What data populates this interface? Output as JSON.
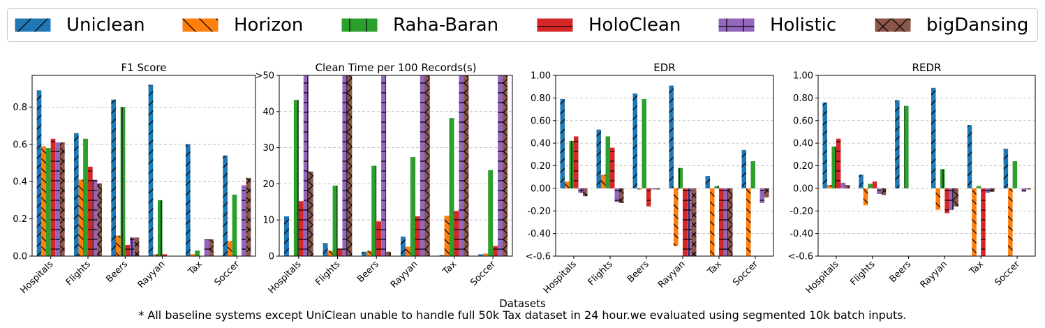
{
  "legend": [
    {
      "name": "Uniclean",
      "color": "#1f77b4",
      "hatch": "/"
    },
    {
      "name": "Horizon",
      "color": "#ff7f0e",
      "hatch": "\\"
    },
    {
      "name": "Raha-Baran",
      "color": "#2ca02c",
      "hatch": "|"
    },
    {
      "name": "HoloClean",
      "color": "#d62728",
      "hatch": "-"
    },
    {
      "name": "Holistic",
      "color": "#9467bd",
      "hatch": "+"
    },
    {
      "name": "bigDansing",
      "color": "#8c564b",
      "hatch": "x"
    }
  ],
  "xlabel": "Datasets",
  "footnote": "* All baseline systems except UniClean unable to handle full 50k Tax dataset in 24 hour.we evaluated using segmented 10k batch inputs.",
  "chart_data": [
    {
      "type": "bar",
      "title": "F1 Score",
      "categories": [
        "Hospitals",
        "Flights",
        "Beers",
        "Rayyan",
        "Tax",
        "Soccer"
      ],
      "ylim": [
        0,
        0.97
      ],
      "yticks": [
        0,
        0.2,
        0.4,
        0.6,
        0.8
      ],
      "ytick_labels": [
        "0.0",
        "0.2",
        "0.4",
        "0.6",
        "0.8"
      ],
      "grid": true,
      "series": [
        {
          "name": "Uniclean",
          "values": [
            0.89,
            0.66,
            0.84,
            0.92,
            0.6,
            0.54
          ]
        },
        {
          "name": "Horizon",
          "values": [
            0.59,
            0.41,
            0.11,
            0.01,
            0.01,
            0.08
          ]
        },
        {
          "name": "Raha-Baran",
          "values": [
            0.58,
            0.63,
            0.8,
            0.3,
            0.03,
            0.33
          ]
        },
        {
          "name": "HoloClean",
          "values": [
            0.63,
            0.48,
            0.06,
            0.01,
            0.0,
            0.0
          ]
        },
        {
          "name": "Holistic",
          "values": [
            0.61,
            0.41,
            0.1,
            0.0,
            0.09,
            0.38
          ]
        },
        {
          "name": "bigDansing",
          "values": [
            0.61,
            0.39,
            0.1,
            0.0,
            0.09,
            0.42
          ]
        }
      ]
    },
    {
      "type": "bar",
      "title": "Clean Time per 100 Records(s)",
      "categories": [
        "Hospitals",
        "Flights",
        "Beers",
        "Rayyan",
        "Tax",
        "Soccer"
      ],
      "ylim": [
        0,
        50
      ],
      "yticks": [
        0,
        10,
        20,
        30,
        40,
        50
      ],
      "ytick_labels": [
        "0",
        "10",
        "20",
        "30",
        "40",
        ">50"
      ],
      "grid": true,
      "series": [
        {
          "name": "Uniclean",
          "values": [
            11,
            3.6,
            1.2,
            5.4,
            0.3,
            0.5
          ]
        },
        {
          "name": "Horizon",
          "values": [
            0.2,
            1.5,
            1.5,
            2.6,
            11.2,
            0.7
          ]
        },
        {
          "name": "Raha-Baran",
          "values": [
            43.2,
            19.5,
            25,
            27.4,
            38.2,
            23.8
          ]
        },
        {
          "name": "HoloClean",
          "values": [
            15.2,
            2.1,
            9.6,
            11,
            12.5,
            2.8
          ]
        },
        {
          "name": "Holistic",
          "values": [
            50,
            50,
            50,
            50,
            50,
            50
          ]
        },
        {
          "name": "bigDansing",
          "values": [
            23.4,
            50,
            1.2,
            50,
            50,
            50
          ]
        }
      ]
    },
    {
      "type": "bar",
      "title": "EDR",
      "categories": [
        "Hospitals",
        "Flights",
        "Beers",
        "Rayyan",
        "Tax",
        "Soccer"
      ],
      "ylim": [
        -0.6,
        1.0
      ],
      "yticks": [
        -0.6,
        -0.4,
        -0.2,
        0,
        0.2,
        0.4,
        0.6,
        0.8,
        1.0
      ],
      "ytick_labels": [
        "<-0.6",
        "-0.40",
        "-0.20",
        "0.00",
        "0.20",
        "0.40",
        "0.60",
        "0.80",
        "1.00"
      ],
      "grid": true,
      "series": [
        {
          "name": "Uniclean",
          "values": [
            0.79,
            0.52,
            0.84,
            0.91,
            0.11,
            0.34
          ]
        },
        {
          "name": "Horizon",
          "values": [
            0.06,
            0.12,
            -0.01,
            -0.51,
            -0.6,
            -0.6
          ]
        },
        {
          "name": "Raha-Baran",
          "values": [
            0.42,
            0.46,
            0.79,
            0.18,
            0.02,
            0.24
          ]
        },
        {
          "name": "HoloClean",
          "values": [
            0.46,
            0.36,
            -0.16,
            -0.6,
            -0.6,
            0.0
          ]
        },
        {
          "name": "Holistic",
          "values": [
            -0.04,
            -0.12,
            -0.01,
            -0.6,
            -0.6,
            -0.13
          ]
        },
        {
          "name": "bigDansing",
          "values": [
            -0.07,
            -0.13,
            -0.01,
            -0.6,
            -0.6,
            -0.08
          ]
        }
      ]
    },
    {
      "type": "bar",
      "title": "REDR",
      "categories": [
        "Hospitals",
        "Flights",
        "Beers",
        "Rayyan",
        "Tax",
        "Soccer"
      ],
      "ylim": [
        -0.6,
        1.0
      ],
      "yticks": [
        -0.6,
        -0.4,
        -0.2,
        0,
        0.2,
        0.4,
        0.6,
        0.8,
        1.0
      ],
      "ytick_labels": [
        "<-0.6",
        "-0.40",
        "-0.20",
        "0.00",
        "0.20",
        "0.40",
        "0.60",
        "0.80",
        "1.00"
      ],
      "grid": true,
      "series": [
        {
          "name": "Uniclean",
          "values": [
            0.76,
            0.12,
            0.78,
            0.89,
            0.56,
            0.35
          ]
        },
        {
          "name": "Horizon",
          "values": [
            0.03,
            -0.15,
            0.0,
            -0.19,
            -0.6,
            -0.6
          ]
        },
        {
          "name": "Raha-Baran",
          "values": [
            0.37,
            0.04,
            0.73,
            0.17,
            0.02,
            0.24
          ]
        },
        {
          "name": "HoloClean",
          "values": [
            0.44,
            0.06,
            0.0,
            -0.22,
            -0.6,
            0.0
          ]
        },
        {
          "name": "Holistic",
          "values": [
            0.05,
            -0.05,
            0.0,
            -0.19,
            -0.04,
            -0.03
          ]
        },
        {
          "name": "bigDansing",
          "values": [
            0.03,
            -0.06,
            0.0,
            -0.16,
            -0.03,
            -0.01
          ]
        }
      ]
    }
  ]
}
